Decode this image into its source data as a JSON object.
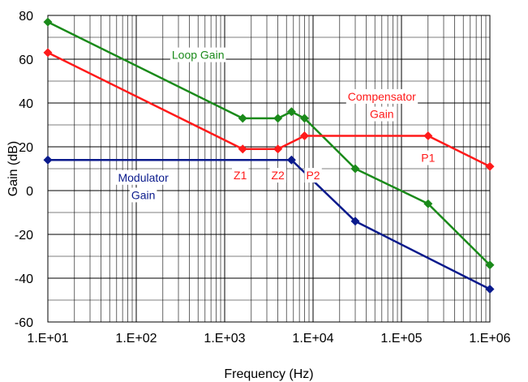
{
  "chart_data": {
    "type": "line",
    "x_scale": "log",
    "xlim": [
      10,
      1000000
    ],
    "ylim": [
      -60,
      80
    ],
    "grid": true,
    "xlabel": "Frequency (Hz)",
    "ylabel": "Gain (dB)",
    "xticks": [
      "1.E+01",
      "1.E+02",
      "1.E+03",
      "1.E+04",
      "1.E+05",
      "1.E+06"
    ],
    "yticks": [
      "-60",
      "-40",
      "-20",
      "0",
      "20",
      "40",
      "60",
      "80"
    ],
    "ytick_values": [
      -60,
      -40,
      -20,
      0,
      20,
      40,
      60,
      80
    ],
    "series": [
      {
        "name": "Loop Gain",
        "color": "#1a8a1a",
        "x": [
          10,
          1600,
          4000,
          5700,
          8000,
          30000,
          200000,
          1000000
        ],
        "y": [
          77,
          33,
          33,
          36,
          33,
          10,
          -6,
          -34
        ]
      },
      {
        "name": "Compensator Gain",
        "color": "#ff1a1a",
        "x": [
          10,
          1600,
          4000,
          8000,
          200000,
          1000000
        ],
        "y": [
          63,
          19,
          19,
          25,
          25,
          11
        ]
      },
      {
        "name": "Modulator Gain",
        "color": "#0a1a8c",
        "x": [
          10,
          5700,
          30000,
          1000000
        ],
        "y": [
          14,
          14,
          -14,
          -45
        ]
      }
    ],
    "annotations": [
      {
        "text": "Loop Gain",
        "color": "#1a8a1a",
        "x": 500,
        "y": 62
      },
      {
        "text": "Compensator",
        "color": "#ff1a1a",
        "x": 60000,
        "y": 43
      },
      {
        "text": "Gain",
        "color": "#ff1a1a",
        "x": 60000,
        "y": 35
      },
      {
        "text": "Modulator",
        "color": "#0a1a8c",
        "x": 120,
        "y": 6
      },
      {
        "text": "Gain",
        "color": "#0a1a8c",
        "x": 120,
        "y": -2
      },
      {
        "text": "Z1",
        "color": "#ff1a1a",
        "x": 1500,
        "y": 7
      },
      {
        "text": "Z2",
        "color": "#ff1a1a",
        "x": 4000,
        "y": 7
      },
      {
        "text": "P2",
        "color": "#ff1a1a",
        "x": 10000,
        "y": 7
      },
      {
        "text": "P1",
        "color": "#ff1a1a",
        "x": 200000,
        "y": 15
      }
    ]
  }
}
